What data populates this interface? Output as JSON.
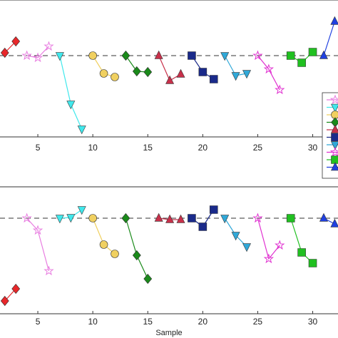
{
  "chart_data": [
    {
      "type": "line",
      "xlim": [
        1.56,
        32.3
      ],
      "ylim": [
        -2.28,
        1.56
      ],
      "xticks": [
        5,
        10,
        15,
        20,
        25,
        30
      ],
      "hline": 0,
      "series": [
        {
          "marker": "diamond",
          "color": "#e8272a",
          "x": [
            2,
            3
          ],
          "values": [
            0.08,
            0.4
          ]
        },
        {
          "marker": "star",
          "color": "#e87ce0",
          "x": [
            4,
            5,
            6
          ],
          "values": [
            0,
            -0.06,
            0.26
          ]
        },
        {
          "marker": "tri-down",
          "color": "#40e8ec",
          "x": [
            7,
            8,
            9
          ],
          "values": [
            0,
            -1.36,
            -2.06
          ]
        },
        {
          "marker": "circle",
          "color": "#f0d060",
          "x": [
            10,
            11,
            12
          ],
          "values": [
            0,
            -0.5,
            -0.6
          ]
        },
        {
          "marker": "diamond",
          "color": "#1a8a1a",
          "x": [
            13,
            14,
            15
          ],
          "values": [
            0,
            -0.44,
            -0.46
          ]
        },
        {
          "marker": "tri-up",
          "color": "#c8304a",
          "x": [
            16,
            17,
            18
          ],
          "values": [
            0,
            -0.7,
            -0.52
          ]
        },
        {
          "marker": "square",
          "color": "#1a2a8a",
          "x": [
            19,
            20,
            21
          ],
          "values": [
            0,
            -0.46,
            -0.66
          ]
        },
        {
          "marker": "tri-down",
          "color": "#30a8d8",
          "x": [
            22,
            23,
            24
          ],
          "values": [
            0,
            -0.56,
            -0.5
          ]
        },
        {
          "marker": "star",
          "color": "#e030d0",
          "x": [
            25,
            26,
            27
          ],
          "values": [
            0,
            -0.38,
            -0.96
          ]
        },
        {
          "marker": "square",
          "color": "#20c020",
          "x": [
            28,
            29,
            30
          ],
          "values": [
            0,
            -0.2,
            0.1
          ]
        },
        {
          "marker": "tri-up",
          "color": "#2040e0",
          "x": [
            31,
            32
          ],
          "values": [
            0,
            0.96
          ]
        }
      ]
    },
    {
      "type": "line",
      "xlim": [
        1.56,
        32.3
      ],
      "ylim": [
        -2.68,
        0.88
      ],
      "xticks": [
        5,
        10,
        15,
        20,
        25,
        30
      ],
      "hline": 0,
      "xlabel": "Sample",
      "series": [
        {
          "marker": "diamond",
          "color": "#e8272a",
          "x": [
            2,
            3
          ],
          "values": [
            -2.32,
            -1.98
          ]
        },
        {
          "marker": "star",
          "color": "#e87ce0",
          "x": [
            4,
            5,
            6
          ],
          "values": [
            0,
            -0.34,
            -1.48
          ]
        },
        {
          "marker": "tri-down",
          "color": "#40e8ec",
          "x": [
            7,
            8,
            9
          ],
          "values": [
            0,
            0.02,
            0.24
          ]
        },
        {
          "marker": "circle",
          "color": "#f0d060",
          "x": [
            10,
            11,
            12
          ],
          "values": [
            0,
            -0.74,
            -1.0
          ]
        },
        {
          "marker": "diamond",
          "color": "#1a8a1a",
          "x": [
            13,
            14,
            15
          ],
          "values": [
            0,
            -1.04,
            -1.7
          ]
        },
        {
          "marker": "tri-up",
          "color": "#c8304a",
          "x": [
            16,
            17,
            18
          ],
          "values": [
            0,
            -0.04,
            -0.04
          ]
        },
        {
          "marker": "square",
          "color": "#1a2a8a",
          "x": [
            19,
            20,
            21
          ],
          "values": [
            0,
            -0.24,
            0.24
          ]
        },
        {
          "marker": "tri-down",
          "color": "#30a8d8",
          "x": [
            22,
            23,
            24
          ],
          "values": [
            0,
            -0.48,
            -0.8
          ]
        },
        {
          "marker": "star",
          "color": "#e030d0",
          "x": [
            25,
            26,
            27
          ],
          "values": [
            0,
            -1.14,
            -0.76
          ]
        },
        {
          "marker": "square",
          "color": "#20c020",
          "x": [
            28,
            29,
            30
          ],
          "values": [
            0,
            -0.96,
            -1.26
          ]
        },
        {
          "marker": "tri-up",
          "color": "#2040e0",
          "x": [
            31,
            32
          ],
          "values": [
            0,
            -0.16
          ]
        }
      ]
    }
  ]
}
